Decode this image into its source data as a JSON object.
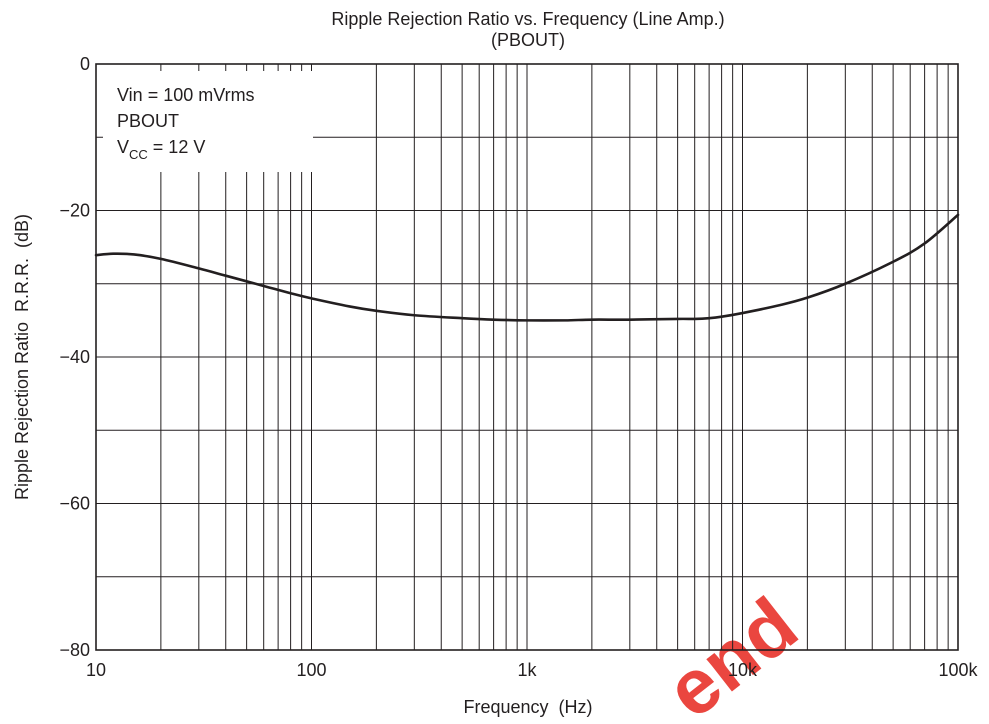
{
  "chart_data": {
    "type": "line",
    "title": "Ripple Rejection Ratio vs. Frequency (Line Amp.)",
    "subtitle": "(PBOUT)",
    "xlabel": "Frequency  (Hz)",
    "ylabel": "Ripple Rejection Ratio  R.R.R.  (dB)",
    "x_scale": "log",
    "xlim": [
      10,
      100000
    ],
    "ylim": [
      -80,
      0
    ],
    "x_ticks": [
      10,
      100,
      1000,
      10000,
      100000
    ],
    "x_tick_labels": [
      "10",
      "100",
      "1k",
      "10k",
      "100k"
    ],
    "y_ticks": [
      0,
      -20,
      -40,
      -60,
      -80
    ],
    "y_tick_labels": [
      "0",
      "−20",
      "−40",
      "−60",
      "−80"
    ],
    "grid": true,
    "annotation": {
      "line1": "Vin = 100 mVrms",
      "line2": "PBOUT",
      "line3_main": "V",
      "line3_sub": "CC",
      "line3_rest": " = 12 V"
    },
    "series": [
      {
        "x": [
          10,
          12,
          15,
          20,
          30,
          40,
          60,
          80,
          100,
          150,
          200,
          300,
          500,
          700,
          1000,
          1500,
          2000,
          3000,
          5000,
          6000,
          7000,
          8000,
          10000,
          15000,
          20000,
          30000,
          50000,
          70000,
          100000
        ],
        "values": [
          -26.1,
          -25.9,
          -26.0,
          -26.6,
          -27.9,
          -28.9,
          -30.3,
          -31.3,
          -32.0,
          -33.1,
          -33.7,
          -34.3,
          -34.7,
          -34.9,
          -35.0,
          -35.0,
          -34.9,
          -34.9,
          -34.8,
          -34.8,
          -34.7,
          -34.5,
          -34.0,
          -32.9,
          -31.9,
          -30.0,
          -27.0,
          -24.5,
          -20.6
        ]
      }
    ],
    "watermark": "end"
  }
}
